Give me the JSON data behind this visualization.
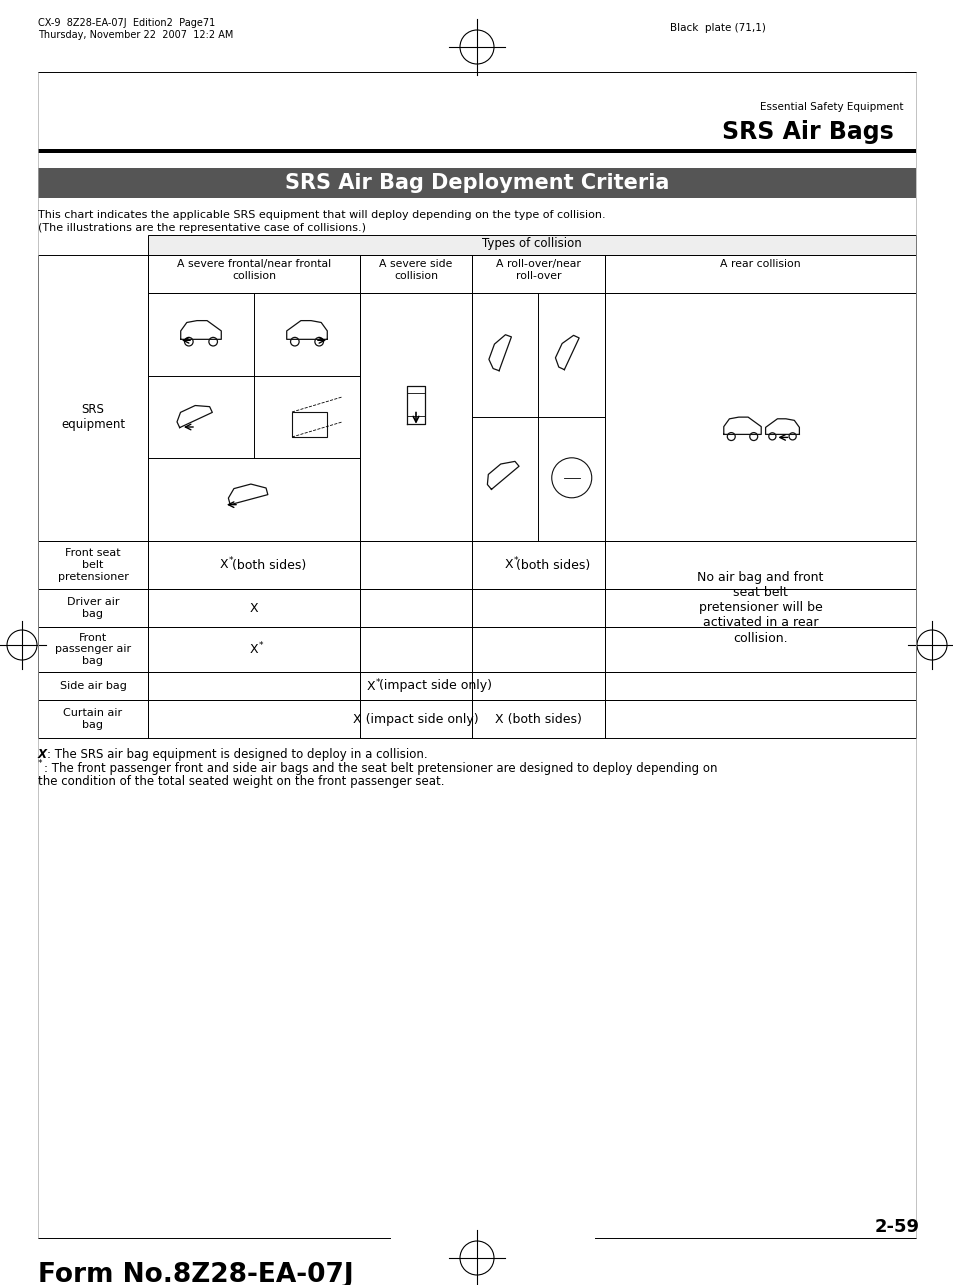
{
  "page_header_left_line1": "CX-9  8Z28-EA-07J  Edition2  Page71",
  "page_header_left_line2": "Thursday, November 22  2007  12:2 AM",
  "page_header_right": "Black  plate (71,1)",
  "section_label": "Essential Safety Equipment",
  "section_title": "SRS Air Bags",
  "main_title": "SRS Air Bag Deployment Criteria",
  "main_title_bg": "#555555",
  "main_title_color": "#ffffff",
  "description_line1": "This chart indicates the applicable SRS equipment that will deploy depending on the type of collision.",
  "description_line2": "(The illustrations are the representative case of collisions.)",
  "table_header_top": "Types of collision",
  "col_headers": [
    "A severe frontal/near frontal\ncollision",
    "A severe side\ncollision",
    "A roll-over/near\nroll-over",
    "A rear collision"
  ],
  "row_label_col": "SRS\nequipment",
  "footnote1_bold": "X",
  "footnote1_rest": ": The SRS air bag equipment is designed to deploy in a collision.",
  "footnote2_super": "*",
  "footnote2_rest": ": The front passenger front and side air bags and the seat belt pretensioner are designed to deploy depending on\nthe condition of the total seated weight on the front passenger seat.",
  "page_number": "2-59",
  "form_number": "Form No.8Z28-EA-07J",
  "bg_color": "#ffffff"
}
